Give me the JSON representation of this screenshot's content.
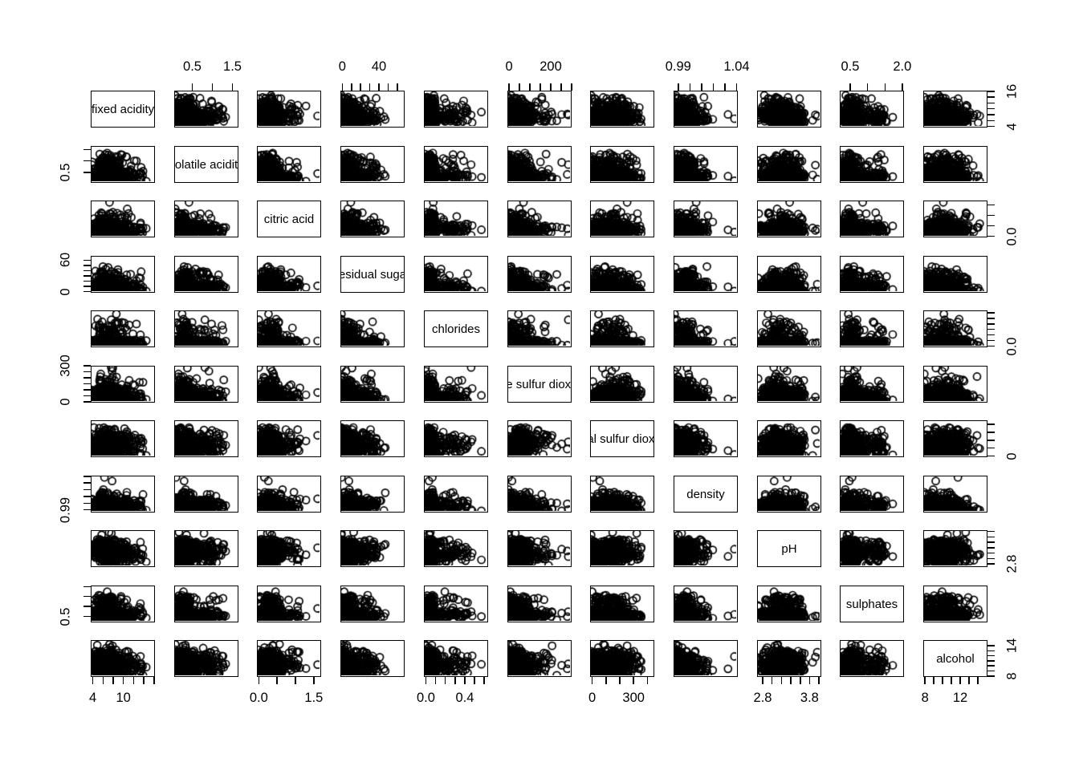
{
  "figure": {
    "background": "#ffffff",
    "frame_color": "#000000",
    "point_color": "#000000",
    "marker": "open-circle"
  },
  "chart_data": {
    "type": "scatter-matrix",
    "title": "",
    "grid": {
      "rows": 11,
      "cols": 11
    },
    "legend": "none",
    "notes": "R pairs() style scatterplot matrix; diagonal shows variable names; axes alternate sides; dense overplotted open circles",
    "variables": [
      {
        "name": "fixed acidity",
        "diag_label": "fixed acidity",
        "range": [
          3.6,
          16.2
        ],
        "ticks": [
          4,
          6,
          8,
          10,
          12,
          14,
          16
        ],
        "x_axis": {
          "side": "bottom",
          "labels": [
            {
              "v": 4,
              "t": "4"
            },
            {
              "v": 10,
              "t": "10"
            }
          ]
        },
        "y_axis": {
          "side": "right",
          "labels": [
            {
              "v": 4,
              "t": "4"
            },
            {
              "v": 16,
              "t": "16"
            }
          ]
        },
        "dist": {
          "mode": 0.24,
          "spread": 0.26,
          "tail": 0.2,
          "tail_len": 0.5,
          "factors": {
            "acid": 0.18
          }
        }
      },
      {
        "name": "volatile acidity",
        "diag_label": "volatile acidity",
        "range": [
          0.05,
          1.65
        ],
        "ticks": [
          0.5,
          1.0,
          1.5
        ],
        "x_axis": {
          "side": "top",
          "labels": [
            {
              "v": 0.5,
              "t": "0.5"
            },
            {
              "v": 1.5,
              "t": "1.5"
            }
          ]
        },
        "y_axis": {
          "side": "left",
          "labels": [
            {
              "v": 0.5,
              "t": "0.5"
            }
          ]
        },
        "dist": {
          "mode": 0.15,
          "spread": 0.22,
          "tail": 0.22,
          "tail_len": 0.55,
          "factors": {}
        }
      },
      {
        "name": "citric acid",
        "diag_label": "citric acid",
        "range": [
          -0.05,
          1.7
        ],
        "ticks": [
          0.0,
          0.5,
          1.0,
          1.5
        ],
        "x_axis": {
          "side": "bottom",
          "labels": [
            {
              "v": 0.0,
              "t": "0.0"
            },
            {
              "v": 1.5,
              "t": "1.5"
            }
          ]
        },
        "y_axis": {
          "side": "right",
          "labels": [
            {
              "v": 0.0,
              "t": "0.0"
            }
          ]
        },
        "dist": {
          "mode": 0.19,
          "spread": 0.26,
          "tail": 0.13,
          "tail_len": 0.45,
          "factors": {}
        }
      },
      {
        "name": "residual sugar",
        "diag_label": "residual sugar",
        "range": [
          -2,
          68
        ],
        "ticks": [
          0,
          10,
          20,
          30,
          40,
          50,
          60
        ],
        "x_axis": {
          "side": "top",
          "labels": [
            {
              "v": 0,
              "t": "0"
            },
            {
              "v": 40,
              "t": "40"
            }
          ]
        },
        "y_axis": {
          "side": "left",
          "labels": [
            {
              "v": 0,
              "t": "0"
            },
            {
              "v": 60,
              "t": "60"
            }
          ]
        },
        "dist": {
          "mode": 0.07,
          "spread": 0.15,
          "tail": 0.26,
          "tail_len": 0.45,
          "factors": {
            "dens": 0.22
          }
        }
      },
      {
        "name": "chlorides",
        "diag_label": "chlorides",
        "range": [
          -0.02,
          0.64
        ],
        "ticks": [
          0.0,
          0.1,
          0.2,
          0.3,
          0.4,
          0.5,
          0.6
        ],
        "x_axis": {
          "side": "bottom",
          "labels": [
            {
              "v": 0.0,
              "t": "0.0"
            },
            {
              "v": 0.4,
              "t": "0.4"
            }
          ]
        },
        "y_axis": {
          "side": "right",
          "labels": [
            {
              "v": 0.0,
              "t": "0.0"
            }
          ]
        },
        "dist": {
          "mode": 0.09,
          "spread": 0.12,
          "tail": 0.16,
          "tail_len": 0.6,
          "factors": {}
        }
      },
      {
        "name": "free sulfur dioxide",
        "diag_label": "free sulfur dioxide",
        "range": [
          -8,
          300
        ],
        "ticks": [
          0,
          50,
          100,
          150,
          200,
          250,
          300
        ],
        "x_axis": {
          "side": "top",
          "labels": [
            {
              "v": 0,
              "t": "0"
            },
            {
              "v": 200,
              "t": "200"
            }
          ]
        },
        "y_axis": {
          "side": "left",
          "labels": [
            {
              "v": 0,
              "t": "0"
            },
            {
              "v": 300,
              "t": "300"
            }
          ]
        },
        "dist": {
          "mode": 0.11,
          "spread": 0.17,
          "tail": 0.16,
          "tail_len": 0.45,
          "factors": {
            "so2": 0.28
          }
        }
      },
      {
        "name": "total sulfur dioxide",
        "diag_label": "total sulfur dioxide",
        "range": [
          -15,
          450
        ],
        "ticks": [
          0,
          100,
          200,
          300,
          400
        ],
        "x_axis": {
          "side": "bottom",
          "labels": [
            {
              "v": 0,
              "t": "0"
            },
            {
              "v": 300,
              "t": "300"
            }
          ]
        },
        "y_axis": {
          "side": "right",
          "labels": [
            {
              "v": 0,
              "t": "0"
            }
          ]
        },
        "dist": {
          "mode": 0.28,
          "spread": 0.38,
          "tail": 0.08,
          "tail_len": 0.3,
          "factors": {
            "so2": 0.3
          }
        }
      },
      {
        "name": "density",
        "diag_label": "density",
        "range": [
          0.986,
          1.041
        ],
        "ticks": [
          0.99,
          1.0,
          1.01,
          1.02,
          1.03,
          1.04
        ],
        "x_axis": {
          "side": "top",
          "labels": [
            {
              "v": 0.99,
              "t": "0.99"
            },
            {
              "v": 1.04,
              "t": "1.04"
            }
          ]
        },
        "y_axis": {
          "side": "left",
          "labels": [
            {
              "v": 0.99,
              "t": "0.99"
            }
          ]
        },
        "dist": {
          "mode": 0.13,
          "spread": 0.14,
          "tail": 0.1,
          "tail_len": 0.3,
          "factors": {
            "dens": 0.26
          }
        }
      },
      {
        "name": "pH",
        "diag_label": "pH",
        "range": [
          2.68,
          4.05
        ],
        "ticks": [
          2.8,
          3.0,
          3.2,
          3.4,
          3.6,
          3.8,
          4.0
        ],
        "x_axis": {
          "side": "bottom",
          "labels": [
            {
              "v": 2.8,
              "t": "2.8"
            },
            {
              "v": 3.8,
              "t": "3.8"
            }
          ]
        },
        "y_axis": {
          "side": "right",
          "labels": [
            {
              "v": 2.8,
              "t": "2.8"
            }
          ]
        },
        "dist": {
          "mode": 0.38,
          "spread": 0.38,
          "tail": 0.06,
          "tail_len": 0.3,
          "factors": {
            "acid": -0.24
          }
        }
      },
      {
        "name": "sulphates",
        "diag_label": "sulphates",
        "range": [
          0.2,
          2.05
        ],
        "ticks": [
          0.5,
          1.0,
          1.5,
          2.0
        ],
        "x_axis": {
          "side": "top",
          "labels": [
            {
              "v": 0.5,
              "t": "0.5"
            },
            {
              "v": 2.0,
              "t": "2.0"
            }
          ]
        },
        "y_axis": {
          "side": "left",
          "labels": [
            {
              "v": 0.5,
              "t": "0.5"
            }
          ]
        },
        "dist": {
          "mode": 0.16,
          "spread": 0.19,
          "tail": 0.18,
          "tail_len": 0.5,
          "factors": {}
        }
      },
      {
        "name": "alcohol",
        "diag_label": "alcohol",
        "range": [
          7.8,
          15.1
        ],
        "ticks": [
          8,
          9,
          10,
          11,
          12,
          13,
          14
        ],
        "x_axis": {
          "side": "bottom",
          "labels": [
            {
              "v": 8,
              "t": "8"
            },
            {
              "v": 12,
              "t": "12"
            }
          ]
        },
        "y_axis": {
          "side": "right",
          "labels": [
            {
              "v": 8,
              "t": "8"
            },
            {
              "v": 14,
              "t": "14"
            }
          ]
        },
        "dist": {
          "mode": 0.3,
          "spread": 0.42,
          "tail": 0.09,
          "tail_len": 0.35,
          "factors": {
            "dens": -0.26
          }
        }
      }
    ]
  }
}
